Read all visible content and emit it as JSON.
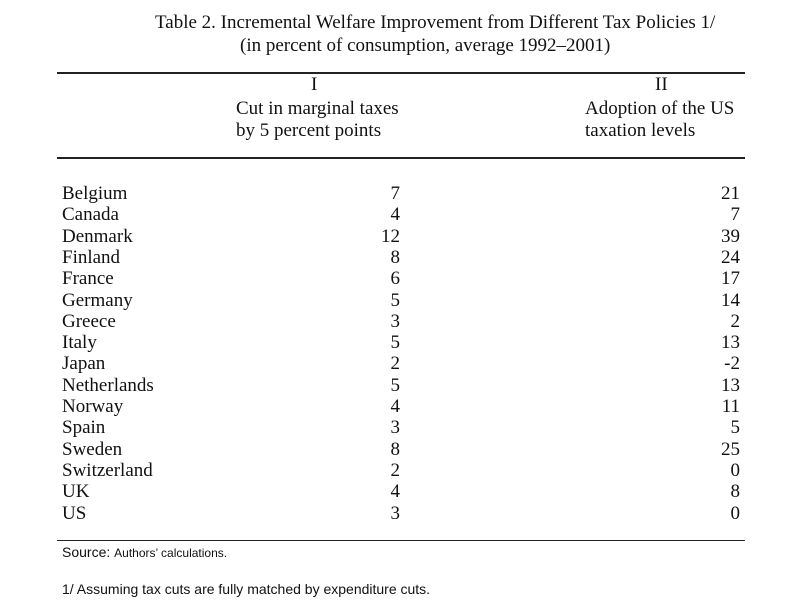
{
  "title_line1": "Table 2. Incremental Welfare Improvement from Different Tax Policies 1/",
  "title_line2": "(in percent of consumption, average 1992–2001)",
  "columns": [
    {
      "numeral": "I",
      "line1": "Cut in marginal taxes",
      "line2": "by 5 percent points"
    },
    {
      "numeral": "II",
      "line1": "Adoption of the US",
      "line2": "taxation levels"
    }
  ],
  "rows": [
    {
      "country": "Belgium",
      "v1": "7",
      "v2": "21"
    },
    {
      "country": "Canada",
      "v1": "4",
      "v2": "7"
    },
    {
      "country": "Denmark",
      "v1": "12",
      "v2": "39"
    },
    {
      "country": "Finland",
      "v1": "8",
      "v2": "24"
    },
    {
      "country": "France",
      "v1": "6",
      "v2": "17"
    },
    {
      "country": "Germany",
      "v1": "5",
      "v2": "14"
    },
    {
      "country": "Greece",
      "v1": "3",
      "v2": "2"
    },
    {
      "country": "Italy",
      "v1": "5",
      "v2": "13"
    },
    {
      "country": "Japan",
      "v1": "2",
      "v2": "-2"
    },
    {
      "country": "Netherlands",
      "v1": "5",
      "v2": "13"
    },
    {
      "country": "Norway",
      "v1": "4",
      "v2": "11"
    },
    {
      "country": "Spain",
      "v1": "3",
      "v2": "5"
    },
    {
      "country": "Sweden",
      "v1": "8",
      "v2": "25"
    },
    {
      "country": "Switzerland",
      "v1": "2",
      "v2": "0"
    },
    {
      "country": "UK",
      "v1": "4",
      "v2": "8"
    },
    {
      "country": "US",
      "v1": "3",
      "v2": "0"
    }
  ],
  "source_label": "Source:",
  "source_text": "Authors’ calculations.",
  "footnote": "1/ Assuming tax cuts are fully matched by expenditure cuts."
}
